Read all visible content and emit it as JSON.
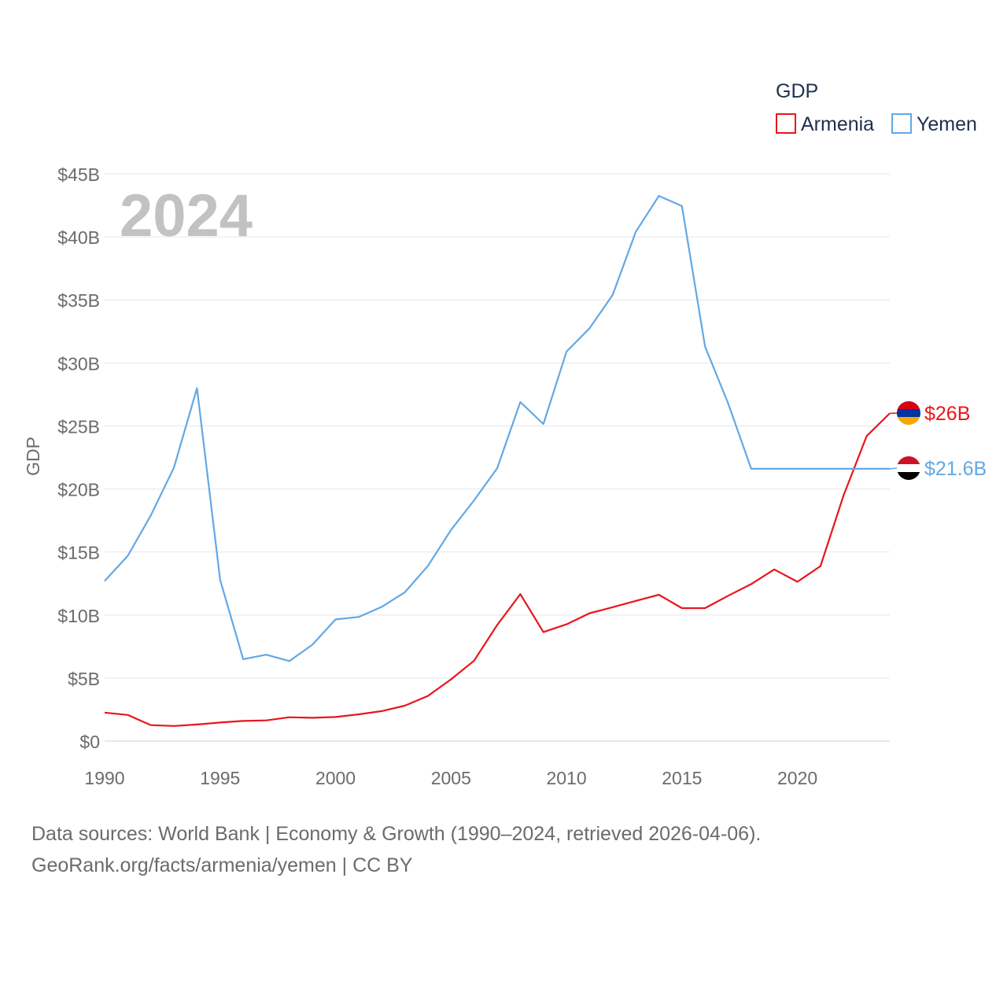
{
  "chart_data": {
    "type": "line",
    "title": "",
    "big_year_label": "2024",
    "xlabel": "",
    "ylabel": "GDP",
    "xlim": [
      1990,
      2024
    ],
    "ylim": [
      0,
      45
    ],
    "grid": true,
    "legend_title": "GDP",
    "legend_position": "top-right",
    "x_ticks": [
      "1990",
      "1995",
      "2000",
      "2005",
      "2010",
      "2015",
      "2020"
    ],
    "y_ticks": [
      {
        "value": 0,
        "label": "$0"
      },
      {
        "value": 5,
        "label": "$5B"
      },
      {
        "value": 10,
        "label": "$10B"
      },
      {
        "value": 15,
        "label": "$15B"
      },
      {
        "value": 20,
        "label": "$20B"
      },
      {
        "value": 25,
        "label": "$25B"
      },
      {
        "value": 30,
        "label": "$30B"
      },
      {
        "value": 35,
        "label": "$35B"
      },
      {
        "value": 40,
        "label": "$40B"
      },
      {
        "value": 45,
        "label": "$45B"
      }
    ],
    "x": [
      1990,
      1991,
      1992,
      1993,
      1994,
      1995,
      1996,
      1997,
      1998,
      1999,
      2000,
      2001,
      2002,
      2003,
      2004,
      2005,
      2006,
      2007,
      2008,
      2009,
      2010,
      2011,
      2012,
      2013,
      2014,
      2015,
      2016,
      2017,
      2018,
      2019,
      2020,
      2021,
      2022,
      2023,
      2024
    ],
    "series": [
      {
        "name": "Armenia",
        "color": "#e8161c",
        "end_label": "$26B",
        "flag_colors": [
          "#d90012",
          "#0033a0",
          "#f2a800"
        ],
        "values": [
          2.26,
          2.07,
          1.27,
          1.2,
          1.32,
          1.47,
          1.6,
          1.64,
          1.89,
          1.85,
          1.91,
          2.12,
          2.38,
          2.81,
          3.58,
          4.9,
          6.38,
          9.21,
          11.66,
          8.65,
          9.26,
          10.14,
          10.62,
          11.12,
          11.61,
          10.55,
          10.55,
          11.53,
          12.46,
          13.62,
          12.64,
          13.88,
          19.5,
          24.2,
          26.0
        ]
      },
      {
        "name": "Yemen",
        "color": "#62a8e5",
        "end_label": "$21.6B",
        "flag_colors": [
          "#ce1126",
          "#ffffff",
          "#000000"
        ],
        "values": [
          12.7,
          14.7,
          17.9,
          21.7,
          28.0,
          12.8,
          6.5,
          6.85,
          6.35,
          7.65,
          9.65,
          9.85,
          10.65,
          11.8,
          13.9,
          16.75,
          19.1,
          21.65,
          26.9,
          25.15,
          30.9,
          32.75,
          35.4,
          40.4,
          43.25,
          42.45,
          31.3,
          26.8,
          21.6,
          21.6,
          21.6,
          21.6,
          21.6,
          21.6,
          21.6
        ]
      }
    ]
  },
  "footer": {
    "line1": "Data sources: World Bank | Economy & Growth (1990–2024, retrieved 2026-04-06).",
    "line2": "GeoRank.org/facts/armenia/yemen | CC BY"
  }
}
